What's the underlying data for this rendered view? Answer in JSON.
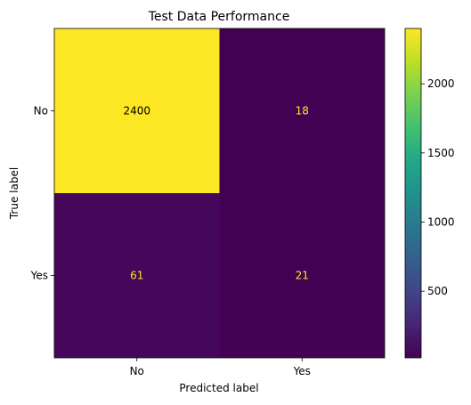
{
  "chart_data": {
    "type": "heatmap",
    "title": "Test Data Performance",
    "xlabel": "Predicted label",
    "ylabel": "True label",
    "x_categories": [
      "No",
      "Yes"
    ],
    "y_categories": [
      "No",
      "Yes"
    ],
    "values": [
      [
        2400,
        18
      ],
      [
        61,
        21
      ]
    ],
    "colormap": "viridis",
    "colorbar": {
      "range": [
        18,
        2400
      ],
      "ticks": [
        500,
        1000,
        1500,
        2000
      ]
    },
    "text_colors": {
      "high": "#000000",
      "low": "#fde725"
    }
  }
}
